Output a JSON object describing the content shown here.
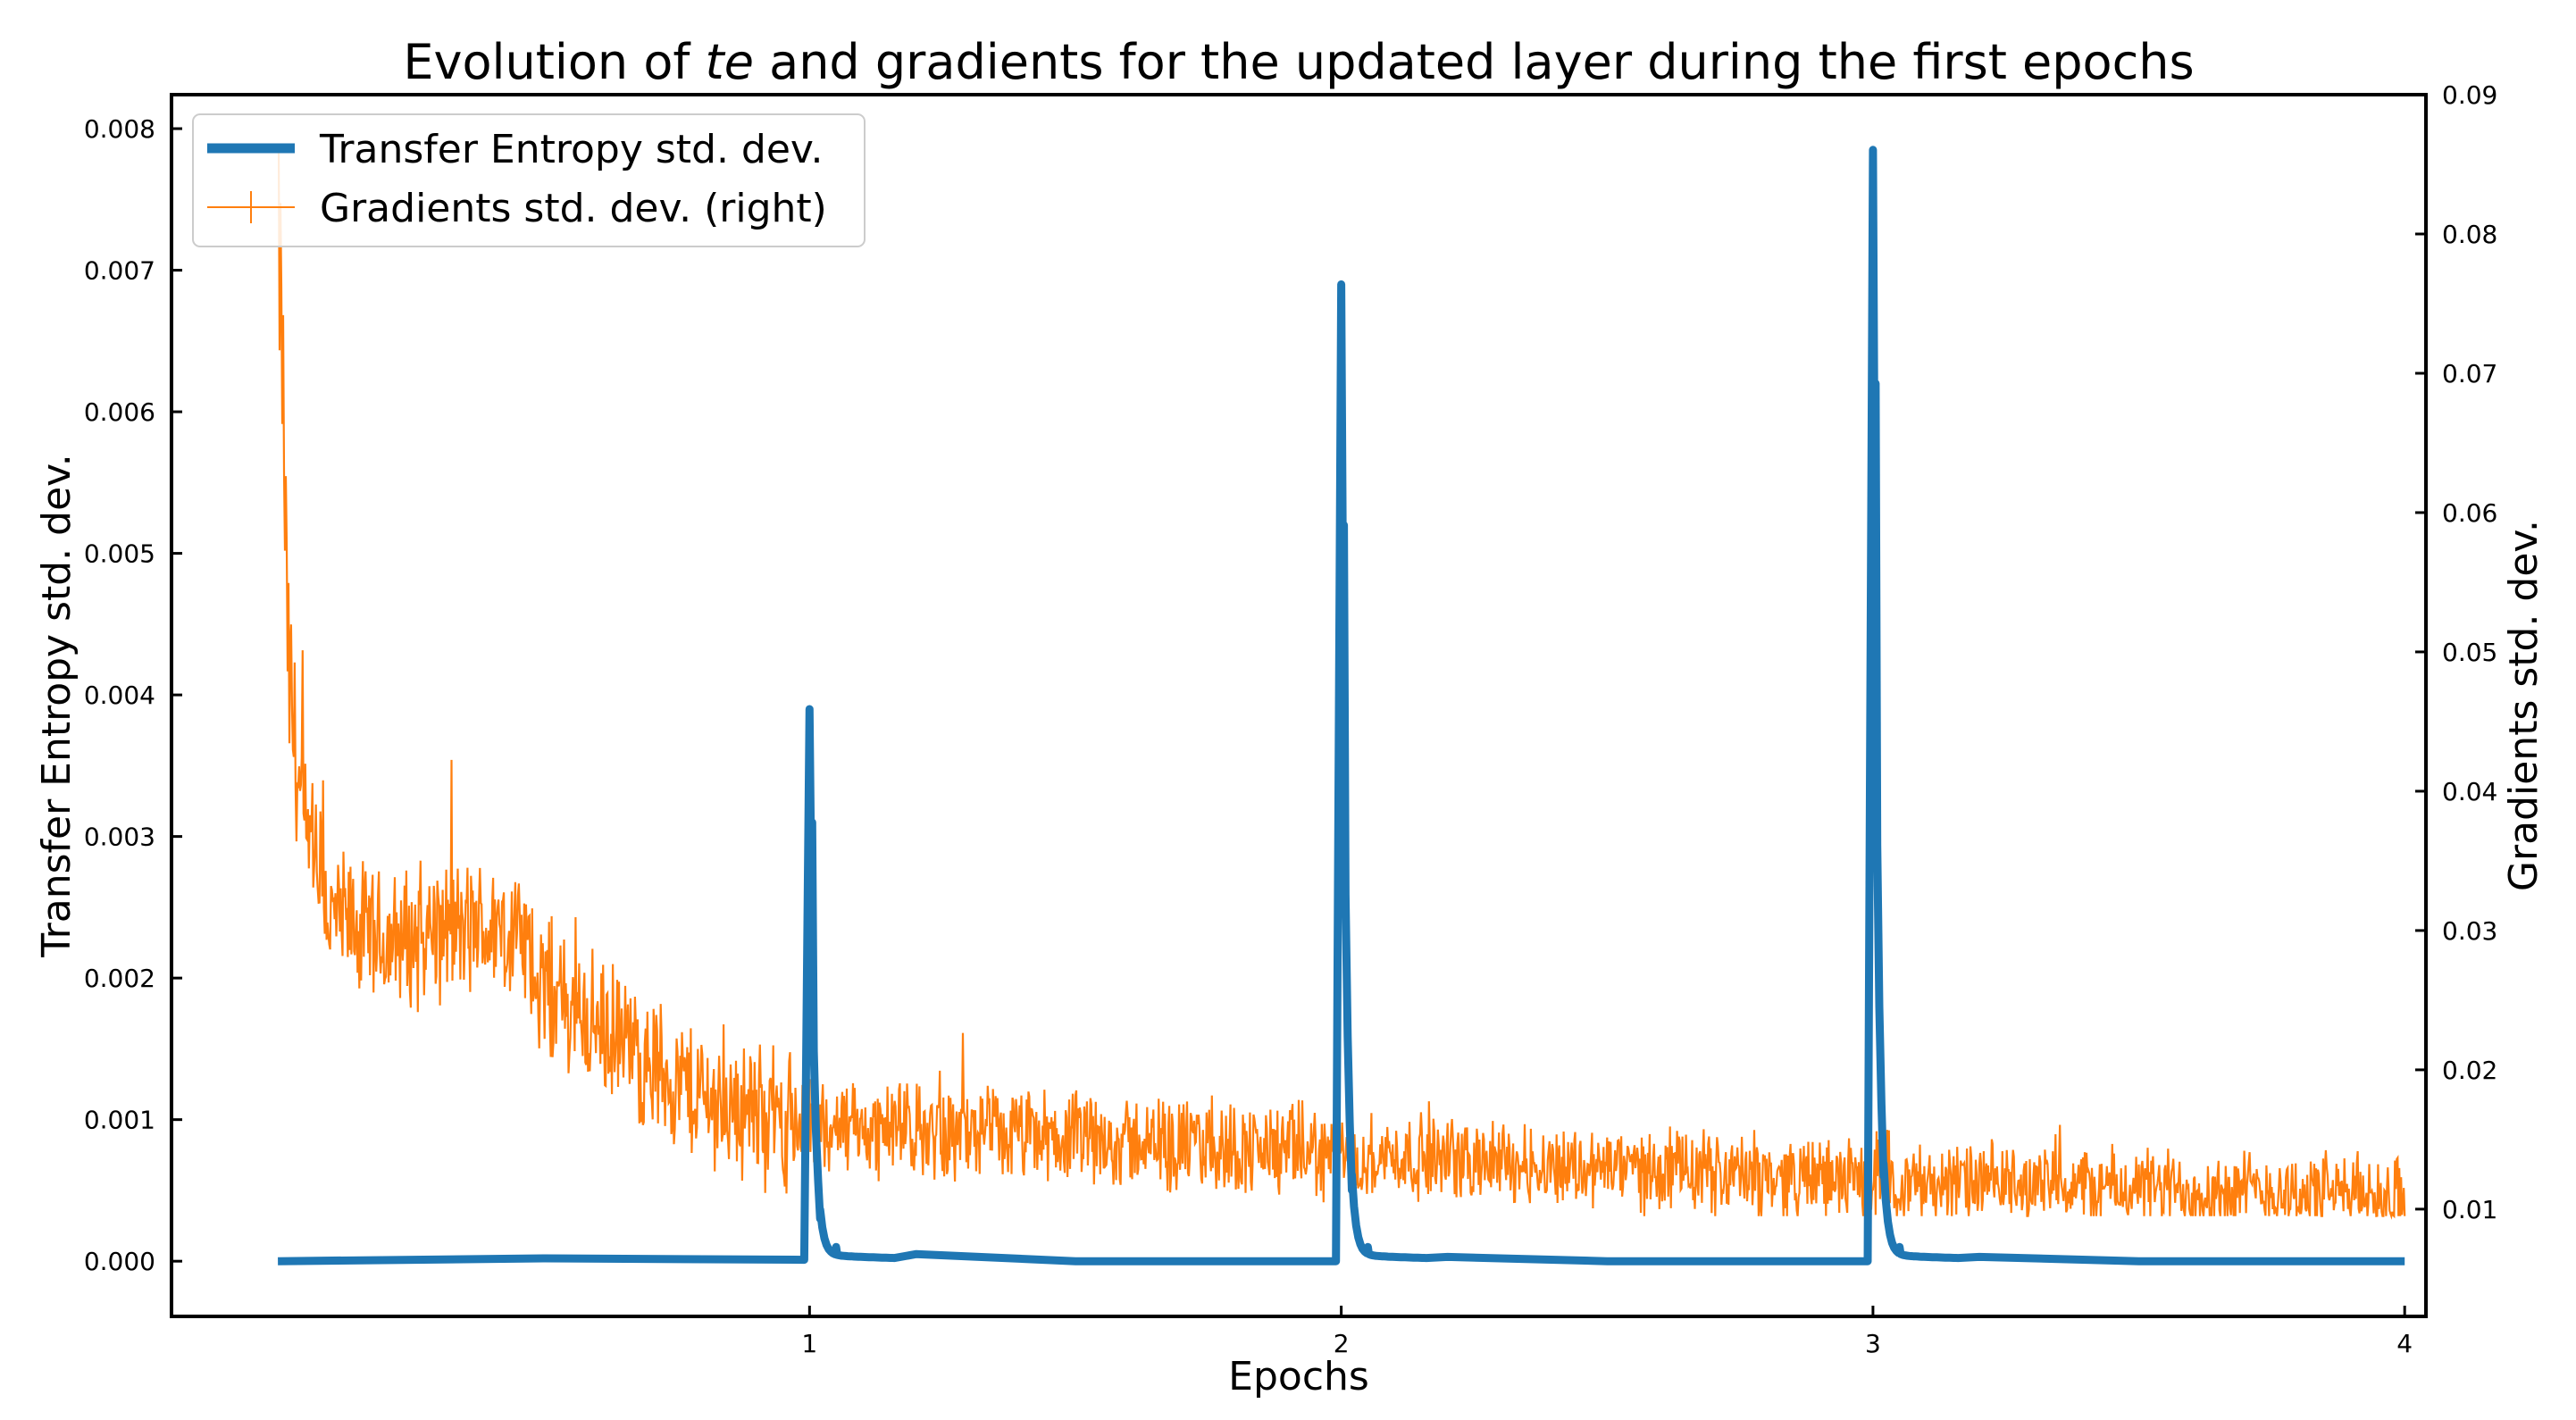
{
  "chart_data": {
    "type": "line",
    "title_prefix": "Evolution of ",
    "title_italic": "te",
    "title_suffix": " and gradients for the updated layer during the first epochs",
    "xlabel": "Epochs",
    "ylabel_left": "Transfer Entropy std. dev.",
    "ylabel_right": "Gradients std. dev.",
    "xlim": [
      -0.2,
      4.04
    ],
    "ylim_left": [
      -0.00039,
      0.00824
    ],
    "ylim_right": [
      0.0023,
      0.09
    ],
    "xticks": [
      1,
      2,
      3,
      4
    ],
    "yticks_left": [
      0.0,
      0.001,
      0.002,
      0.003,
      0.004,
      0.005,
      0.006,
      0.007,
      0.008
    ],
    "yticks_right": [
      0.01,
      0.02,
      0.03,
      0.04,
      0.05,
      0.06,
      0.07,
      0.08,
      0.09
    ],
    "legend_position": "upper-left",
    "grid": false,
    "series": [
      {
        "name": "Transfer Entropy std. dev.",
        "axis": "left",
        "color": "#1f77b4",
        "style": "thick",
        "description_points": {
          "x": [
            0,
            0.5,
            0.99,
            1.0,
            1.005,
            1.02,
            1.05,
            1.2,
            1.5,
            1.99,
            2.0,
            2.005,
            2.02,
            2.05,
            2.2,
            2.5,
            2.99,
            3.0,
            3.005,
            3.02,
            3.05,
            3.2,
            3.5,
            4.0
          ],
          "y": [
            0.0,
            2e-05,
            1e-05,
            0.0039,
            0.0031,
            0.0003,
            0.0001,
            5e-05,
            0.0,
            0.0,
            0.0069,
            0.0052,
            0.0005,
            0.0001,
            3e-05,
            0.0,
            0.0,
            0.00785,
            0.0062,
            0.0006,
            0.0001,
            3e-05,
            0.0,
            0.0
          ]
        }
      },
      {
        "name": "Gradients std. dev. (right)",
        "axis": "right",
        "color": "#ff7f0e",
        "style": "thin-noisy",
        "trend": {
          "x": [
            0.0,
            0.02,
            0.05,
            0.1,
            0.2,
            0.3,
            0.45,
            0.5,
            0.6,
            0.8,
            1.0,
            1.5,
            2.0,
            2.5,
            3.0,
            3.5,
            4.0
          ],
          "y": [
            0.085,
            0.048,
            0.036,
            0.031,
            0.029,
            0.03,
            0.03,
            0.026,
            0.023,
            0.018,
            0.016,
            0.015,
            0.014,
            0.013,
            0.012,
            0.0115,
            0.011
          ]
        },
        "noise_amplitude": [
          0.012,
          0.006,
          0.004,
          0.0035,
          0.0035
        ]
      }
    ]
  }
}
